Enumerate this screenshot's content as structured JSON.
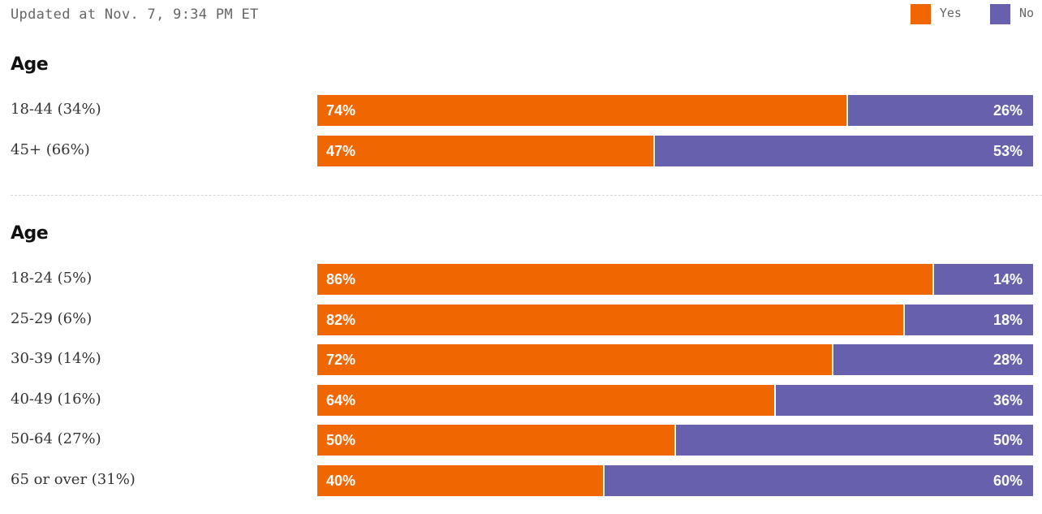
{
  "updated": "Updated at Nov. 7, 9:34 PM ET",
  "legend": [
    {
      "label": "Yes",
      "color": "#f06600"
    },
    {
      "label": "No",
      "color": "#6761ad"
    }
  ],
  "chart_data": [
    {
      "type": "bar",
      "orientation": "horizontal-stacked",
      "title": "Age",
      "categories": [
        "18-44 (34%)",
        "45+ (66%)"
      ],
      "series": [
        {
          "name": "Yes",
          "values": [
            74,
            47
          ]
        },
        {
          "name": "No",
          "values": [
            26,
            53
          ]
        }
      ],
      "xlim": [
        0,
        100
      ]
    },
    {
      "type": "bar",
      "orientation": "horizontal-stacked",
      "title": "Age",
      "categories": [
        "18-24 (5%)",
        "25-29 (6%)",
        "30-39 (14%)",
        "40-49 (16%)",
        "50-64 (27%)",
        "65 or over (31%)"
      ],
      "series": [
        {
          "name": "Yes",
          "values": [
            86,
            82,
            72,
            64,
            50,
            40
          ]
        },
        {
          "name": "No",
          "values": [
            14,
            18,
            28,
            36,
            50,
            60
          ]
        }
      ],
      "xlim": [
        0,
        100
      ]
    }
  ]
}
